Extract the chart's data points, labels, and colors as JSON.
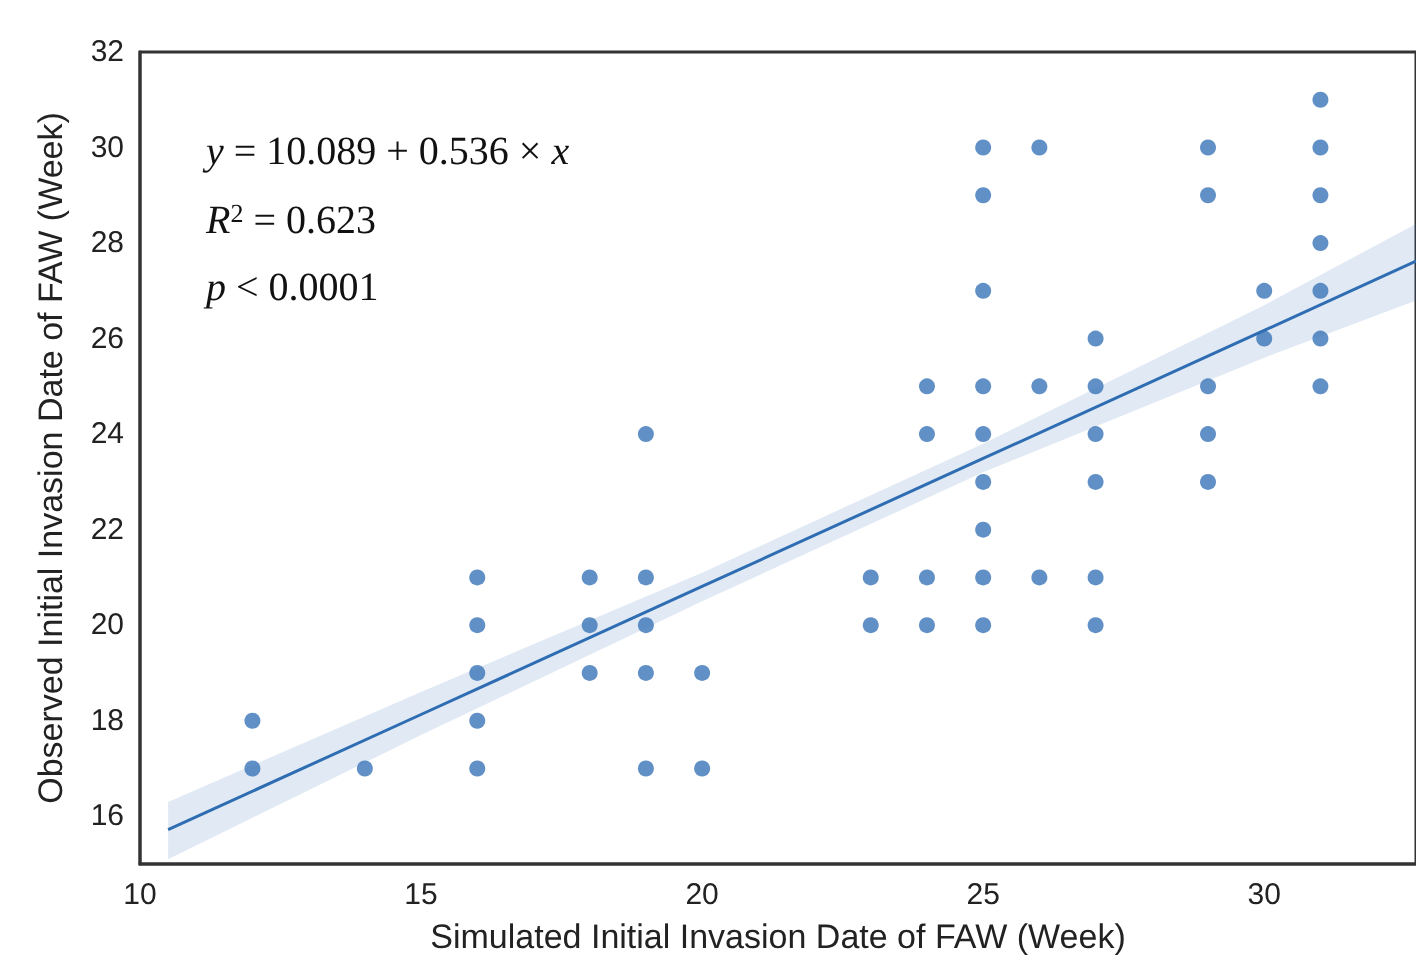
{
  "chart_data": {
    "type": "scatter",
    "xlabel": "Simulated Initial Invasion Date of FAW (Week)",
    "ylabel": "Observed Initial Invasion Date of FAW (Week)",
    "annotations": [
      "y = 10.089 + 0.536 × x",
      "R$^{2}$ = 0.623",
      "p < 0.0001"
    ],
    "xlim": [
      10,
      32.7
    ],
    "xticks": [
      10,
      15,
      20,
      25,
      30
    ],
    "ylim": [
      15,
      32
    ],
    "yticks": [
      16,
      18,
      20,
      22,
      24,
      26,
      28,
      30,
      32
    ],
    "grid": false,
    "marker": "circle",
    "series": [
      {
        "color": "#3a74b8",
        "x": [
          12,
          12,
          14,
          16,
          16,
          16,
          16,
          16,
          18,
          18,
          18,
          19,
          19,
          19,
          19,
          19,
          20,
          20,
          23,
          23,
          24,
          24,
          24,
          24,
          25,
          25,
          25,
          25,
          25,
          25,
          25,
          25,
          25,
          26,
          26,
          26,
          27,
          27,
          27,
          27,
          27,
          27,
          29,
          29,
          29,
          29,
          29,
          30,
          30,
          31,
          31,
          31,
          31,
          31,
          31,
          31
        ],
        "values": [
          18,
          17,
          17,
          21,
          20,
          19,
          18,
          17,
          21,
          20,
          19,
          24,
          21,
          20,
          19,
          17,
          19,
          17,
          21,
          20,
          25,
          24,
          21,
          20,
          30,
          29,
          27,
          25,
          24,
          23,
          22,
          21,
          20,
          30,
          25,
          21,
          26,
          25,
          24,
          23,
          21,
          20,
          30,
          29,
          25,
          24,
          23,
          27,
          26,
          31,
          30,
          29,
          28,
          27,
          26,
          25
        ]
      },
      {
        "type": "line",
        "color": "#2f6db3",
        "line_style": "solid",
        "marker": "none",
        "x": [
          10.5,
          15,
          20,
          25,
          30,
          32.7
        ],
        "values": [
          15.72,
          18.13,
          20.81,
          23.49,
          26.17,
          27.62
        ],
        "lower": [
          15.1,
          17.7,
          20.5,
          23.2,
          25.6,
          26.8
        ],
        "upper": [
          16.3,
          18.6,
          21.1,
          23.8,
          26.7,
          28.4
        ]
      }
    ]
  }
}
